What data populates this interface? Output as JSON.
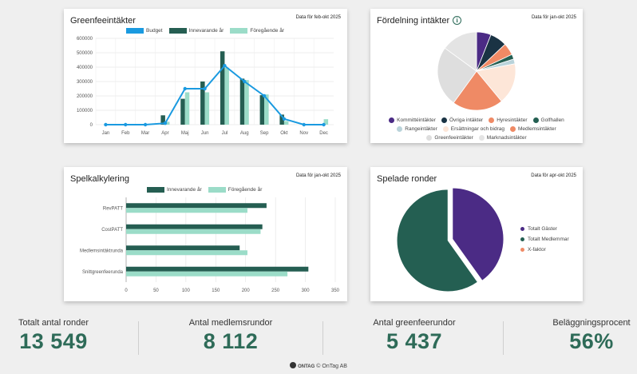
{
  "greenfee": {
    "title": "Greenfeeintäkter",
    "period": "Data för feb-okt 2025",
    "chart_data": {
      "type": "bar",
      "categories": [
        "Jan",
        "Feb",
        "Mar",
        "Apr",
        "Maj",
        "Jun",
        "Jul",
        "Aug",
        "Sep",
        "Okt",
        "Nov",
        "Dec"
      ],
      "series": [
        {
          "name": "Budget",
          "type": "line",
          "color": "#1a9ae0",
          "values": [
            0,
            0,
            0,
            10000,
            250000,
            250000,
            410000,
            300000,
            200000,
            40000,
            0,
            0
          ]
        },
        {
          "name": "Innevarande år",
          "color": "#255e52",
          "values": [
            0,
            0,
            0,
            65000,
            180000,
            300000,
            510000,
            320000,
            205000,
            70000,
            0,
            0
          ]
        },
        {
          "name": "Föregående år",
          "color": "#9bdcc8",
          "values": [
            0,
            0,
            0,
            20000,
            225000,
            225000,
            395000,
            310000,
            210000,
            25000,
            0,
            38000
          ]
        }
      ],
      "yticks": [
        "0",
        "100000",
        "200000",
        "300000",
        "400000",
        "500000",
        "600000"
      ],
      "ylim": [
        0,
        600000
      ]
    }
  },
  "distribution": {
    "title": "Fördelning intäkter",
    "info_icon": "info-icon",
    "period": "Data för jan-okt 2025",
    "chart_data": {
      "type": "pie",
      "labels": [
        "Kommittéintäkter",
        "Övriga intäkter",
        "Hyresintäkter",
        "Golfhallen",
        "Rangeintäkter",
        "Ersättningar och bidrag",
        "Medlemsintäkter",
        "Greenfeeintäkter",
        "Marknadsintäkter"
      ],
      "colors": [
        "#4b2b85",
        "#1a3344",
        "#ef8a65",
        "#245f52",
        "#b9d3da",
        "#fde6d8",
        "#ef8a65",
        "#dedede",
        "#e4e4e4"
      ],
      "values": [
        6,
        7,
        5,
        2,
        2,
        17,
        21,
        25,
        15
      ]
    }
  },
  "spelkalk": {
    "title": "Spelkalkylering",
    "period": "Data för jan-okt 2025",
    "chart_data": {
      "type": "bar",
      "orientation": "horizontal",
      "categories": [
        "RevPATT",
        "CostPATT",
        "Medlemsintäktrunda",
        "Snittgreenfeerunda"
      ],
      "series": [
        {
          "name": "Innevarande år",
          "color": "#255e52",
          "values": [
            235,
            228,
            190,
            305
          ]
        },
        {
          "name": "Föregående år",
          "color": "#9bdcc8",
          "values": [
            203,
            225,
            203,
            270
          ]
        }
      ],
      "xticks": [
        "0",
        "50",
        "100",
        "150",
        "200",
        "250",
        "300",
        "350"
      ],
      "xlim": [
        0,
        350
      ]
    }
  },
  "rounds": {
    "title": "Spelade ronder",
    "period": "Data för apr-okt 2025",
    "chart_data": {
      "type": "pie",
      "labels": [
        "Totalt Gäster",
        "Totalt Medlemmar",
        "X-faktor"
      ],
      "colors": [
        "#4b2b85",
        "#245f52",
        "#ef8a65"
      ],
      "values": [
        5437,
        8112,
        0
      ]
    }
  },
  "kpis": [
    {
      "label": "Totalt antal ronder",
      "value": "13 549"
    },
    {
      "label": "Antal medlemsrundor",
      "value": "8 112"
    },
    {
      "label": "Antal greenfeerundor",
      "value": "5 437"
    },
    {
      "label": "Beläggningsprocent",
      "value": "56%"
    }
  ],
  "footer": {
    "brand": "ONTAG",
    "text": "© OnTag AB"
  }
}
